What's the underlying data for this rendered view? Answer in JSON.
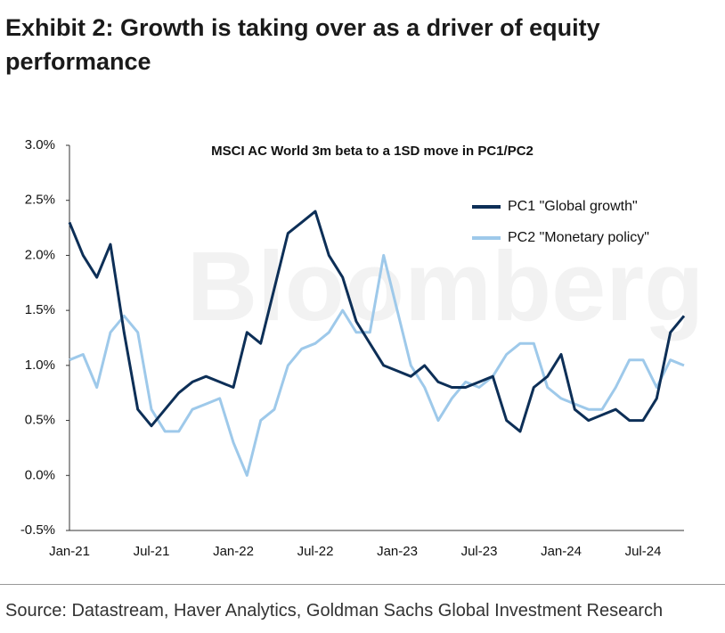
{
  "chart_data": {
    "type": "line",
    "heading": "Exhibit 2: Growth is taking over as a driver of equity performance",
    "title": "MSCI AC World 3m beta to a 1SD move in PC1/PC2",
    "watermark": "Bloomberg",
    "source": "Source: Datastream, Haver Analytics, Goldman Sachs Global Investment Research",
    "categories": [
      "Jan-21",
      null,
      null,
      null,
      null,
      null,
      "Jul-21",
      null,
      null,
      null,
      null,
      null,
      "Jan-22",
      null,
      null,
      null,
      null,
      null,
      "Jul-22",
      null,
      null,
      null,
      null,
      null,
      "Jan-23",
      null,
      null,
      null,
      null,
      null,
      "Jul-23",
      null,
      null,
      null,
      null,
      null,
      "Jan-24",
      null,
      null,
      null,
      null,
      null,
      "Jul-24",
      null,
      null,
      null
    ],
    "series": [
      {
        "name": "PC1 \"Global growth\"",
        "color": "#0d2f57",
        "values": [
          2.3,
          2.0,
          1.8,
          2.1,
          1.3,
          0.6,
          0.45,
          0.6,
          0.75,
          0.85,
          0.9,
          0.85,
          0.8,
          1.3,
          1.2,
          1.7,
          2.2,
          2.3,
          2.4,
          2.0,
          1.8,
          1.4,
          1.2,
          1.0,
          0.95,
          0.9,
          1.0,
          0.85,
          0.8,
          0.8,
          0.85,
          0.9,
          0.5,
          0.4,
          0.8,
          0.9,
          1.1,
          0.6,
          0.5,
          0.55,
          0.6,
          0.5,
          0.5,
          0.7,
          1.3,
          1.45
        ]
      },
      {
        "name": "PC2 \"Monetary policy\"",
        "color": "#9ec9ea",
        "values": [
          1.05,
          1.1,
          0.8,
          1.3,
          1.45,
          1.3,
          0.6,
          0.4,
          0.4,
          0.6,
          0.65,
          0.7,
          0.3,
          0.0,
          0.5,
          0.6,
          1.0,
          1.15,
          1.2,
          1.3,
          1.5,
          1.3,
          1.3,
          2.0,
          1.5,
          1.0,
          0.8,
          0.5,
          0.7,
          0.85,
          0.8,
          0.9,
          1.1,
          1.2,
          1.2,
          0.8,
          0.7,
          0.65,
          0.6,
          0.6,
          0.8,
          1.05,
          1.05,
          0.8,
          1.05,
          1.0
        ]
      }
    ],
    "ylim": [
      -0.5,
      3
    ],
    "yticks": [
      {
        "value": -0.5,
        "label": "-0.5%"
      },
      {
        "value": 0,
        "label": "0.0%"
      },
      {
        "value": 0.5,
        "label": "0.5%"
      },
      {
        "value": 1,
        "label": "1.0%"
      },
      {
        "value": 1.5,
        "label": "1.5%"
      },
      {
        "value": 2,
        "label": "2.0%"
      },
      {
        "value": 2.5,
        "label": "2.5%"
      },
      {
        "value": 3,
        "label": "3.0%"
      }
    ],
    "grid": false,
    "legend": "upper right"
  }
}
